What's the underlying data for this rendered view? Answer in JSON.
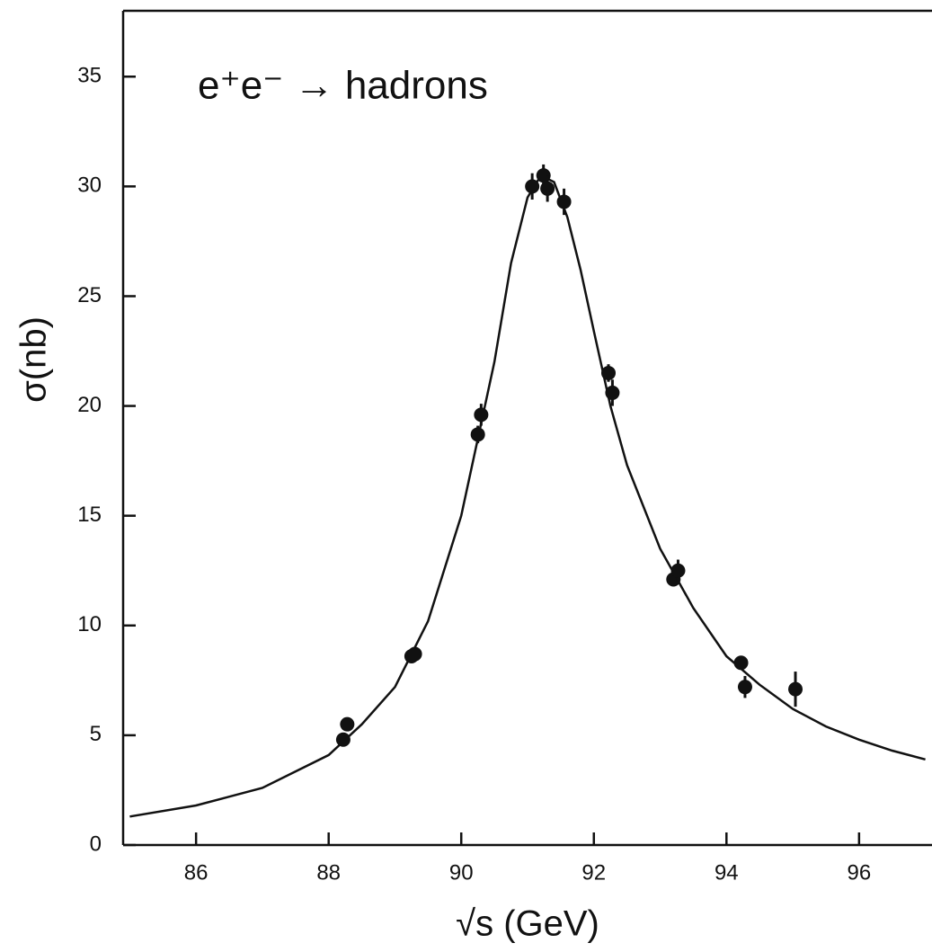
{
  "chart_data": {
    "type": "scatter",
    "title": "e⁺e⁻ → hadrons",
    "x_label": "√s (GeV)",
    "y_label": "σ(nb)",
    "xlim": [
      84.9,
      97.1
    ],
    "ylim": [
      0,
      38
    ],
    "xticks": [
      86,
      88,
      90,
      92,
      94,
      96
    ],
    "yticks": [
      0,
      5,
      10,
      15,
      20,
      25,
      30,
      35
    ],
    "color": "#111111",
    "points": {
      "x": [
        88.22,
        88.28,
        89.25,
        89.3,
        90.25,
        90.3,
        91.07,
        91.24,
        91.3,
        91.55,
        92.22,
        92.28,
        93.2,
        93.27,
        94.22,
        94.28,
        95.04
      ],
      "y": [
        4.8,
        5.5,
        8.6,
        8.7,
        18.7,
        19.6,
        30.0,
        30.5,
        29.9,
        29.3,
        21.5,
        20.6,
        12.1,
        12.5,
        8.3,
        7.2,
        7.1
      ],
      "yerr": [
        0.3,
        0.3,
        0.3,
        0.3,
        0.4,
        0.5,
        0.6,
        0.5,
        0.6,
        0.6,
        0.4,
        0.6,
        0.3,
        0.5,
        0.3,
        0.5,
        0.8
      ]
    },
    "fit": {
      "x": [
        85,
        86,
        87,
        88,
        88.5,
        89,
        89.5,
        90,
        90.5,
        90.75,
        91,
        91.2,
        91.4,
        91.6,
        91.8,
        92,
        92.25,
        92.5,
        93,
        93.5,
        94,
        94.5,
        95,
        95.5,
        96,
        96.5,
        97
      ],
      "y": [
        1.3,
        1.8,
        2.6,
        4.1,
        5.5,
        7.2,
        10.2,
        15.0,
        22.0,
        26.5,
        29.5,
        30.5,
        30.2,
        28.6,
        26.2,
        23.4,
        20.0,
        17.3,
        13.5,
        10.8,
        8.6,
        7.3,
        6.2,
        5.4,
        4.8,
        4.3,
        3.9
      ]
    }
  }
}
